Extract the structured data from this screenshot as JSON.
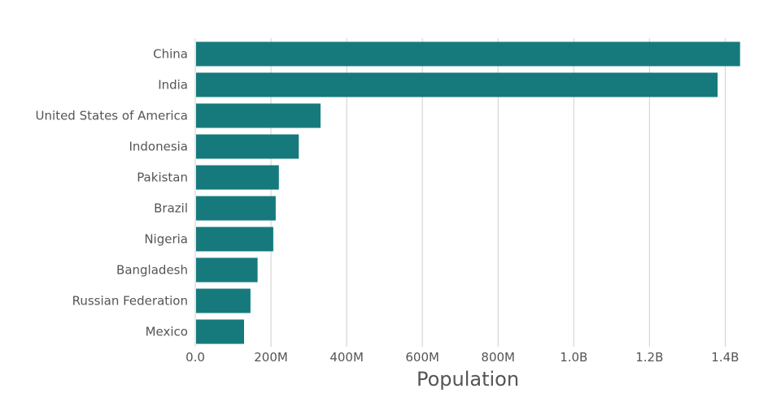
{
  "chart_data": {
    "type": "bar",
    "orientation": "horizontal",
    "categories": [
      "China",
      "India",
      "United States of America",
      "Indonesia",
      "Pakistan",
      "Brazil",
      "Nigeria",
      "Bangladesh",
      "Russian Federation",
      "Mexico"
    ],
    "values": [
      1439323776,
      1380004385,
      331002651,
      273523615,
      220892340,
      212559417,
      206139589,
      164689383,
      145934462,
      128932753
    ],
    "xlabel": "Population",
    "ylabel": "",
    "xlim": [
      0,
      1440000000
    ],
    "x_ticks": [
      0,
      200000000,
      400000000,
      600000000,
      800000000,
      1000000000,
      1200000000,
      1400000000
    ],
    "x_tick_labels": [
      "0.0",
      "200M",
      "400M",
      "600M",
      "800M",
      "1.0B",
      "1.2B",
      "1.4B"
    ],
    "grid": true,
    "legend": "none",
    "bar_color": "#167a7d",
    "grid_color": "#cfcfcf",
    "text_color": "#555555"
  }
}
